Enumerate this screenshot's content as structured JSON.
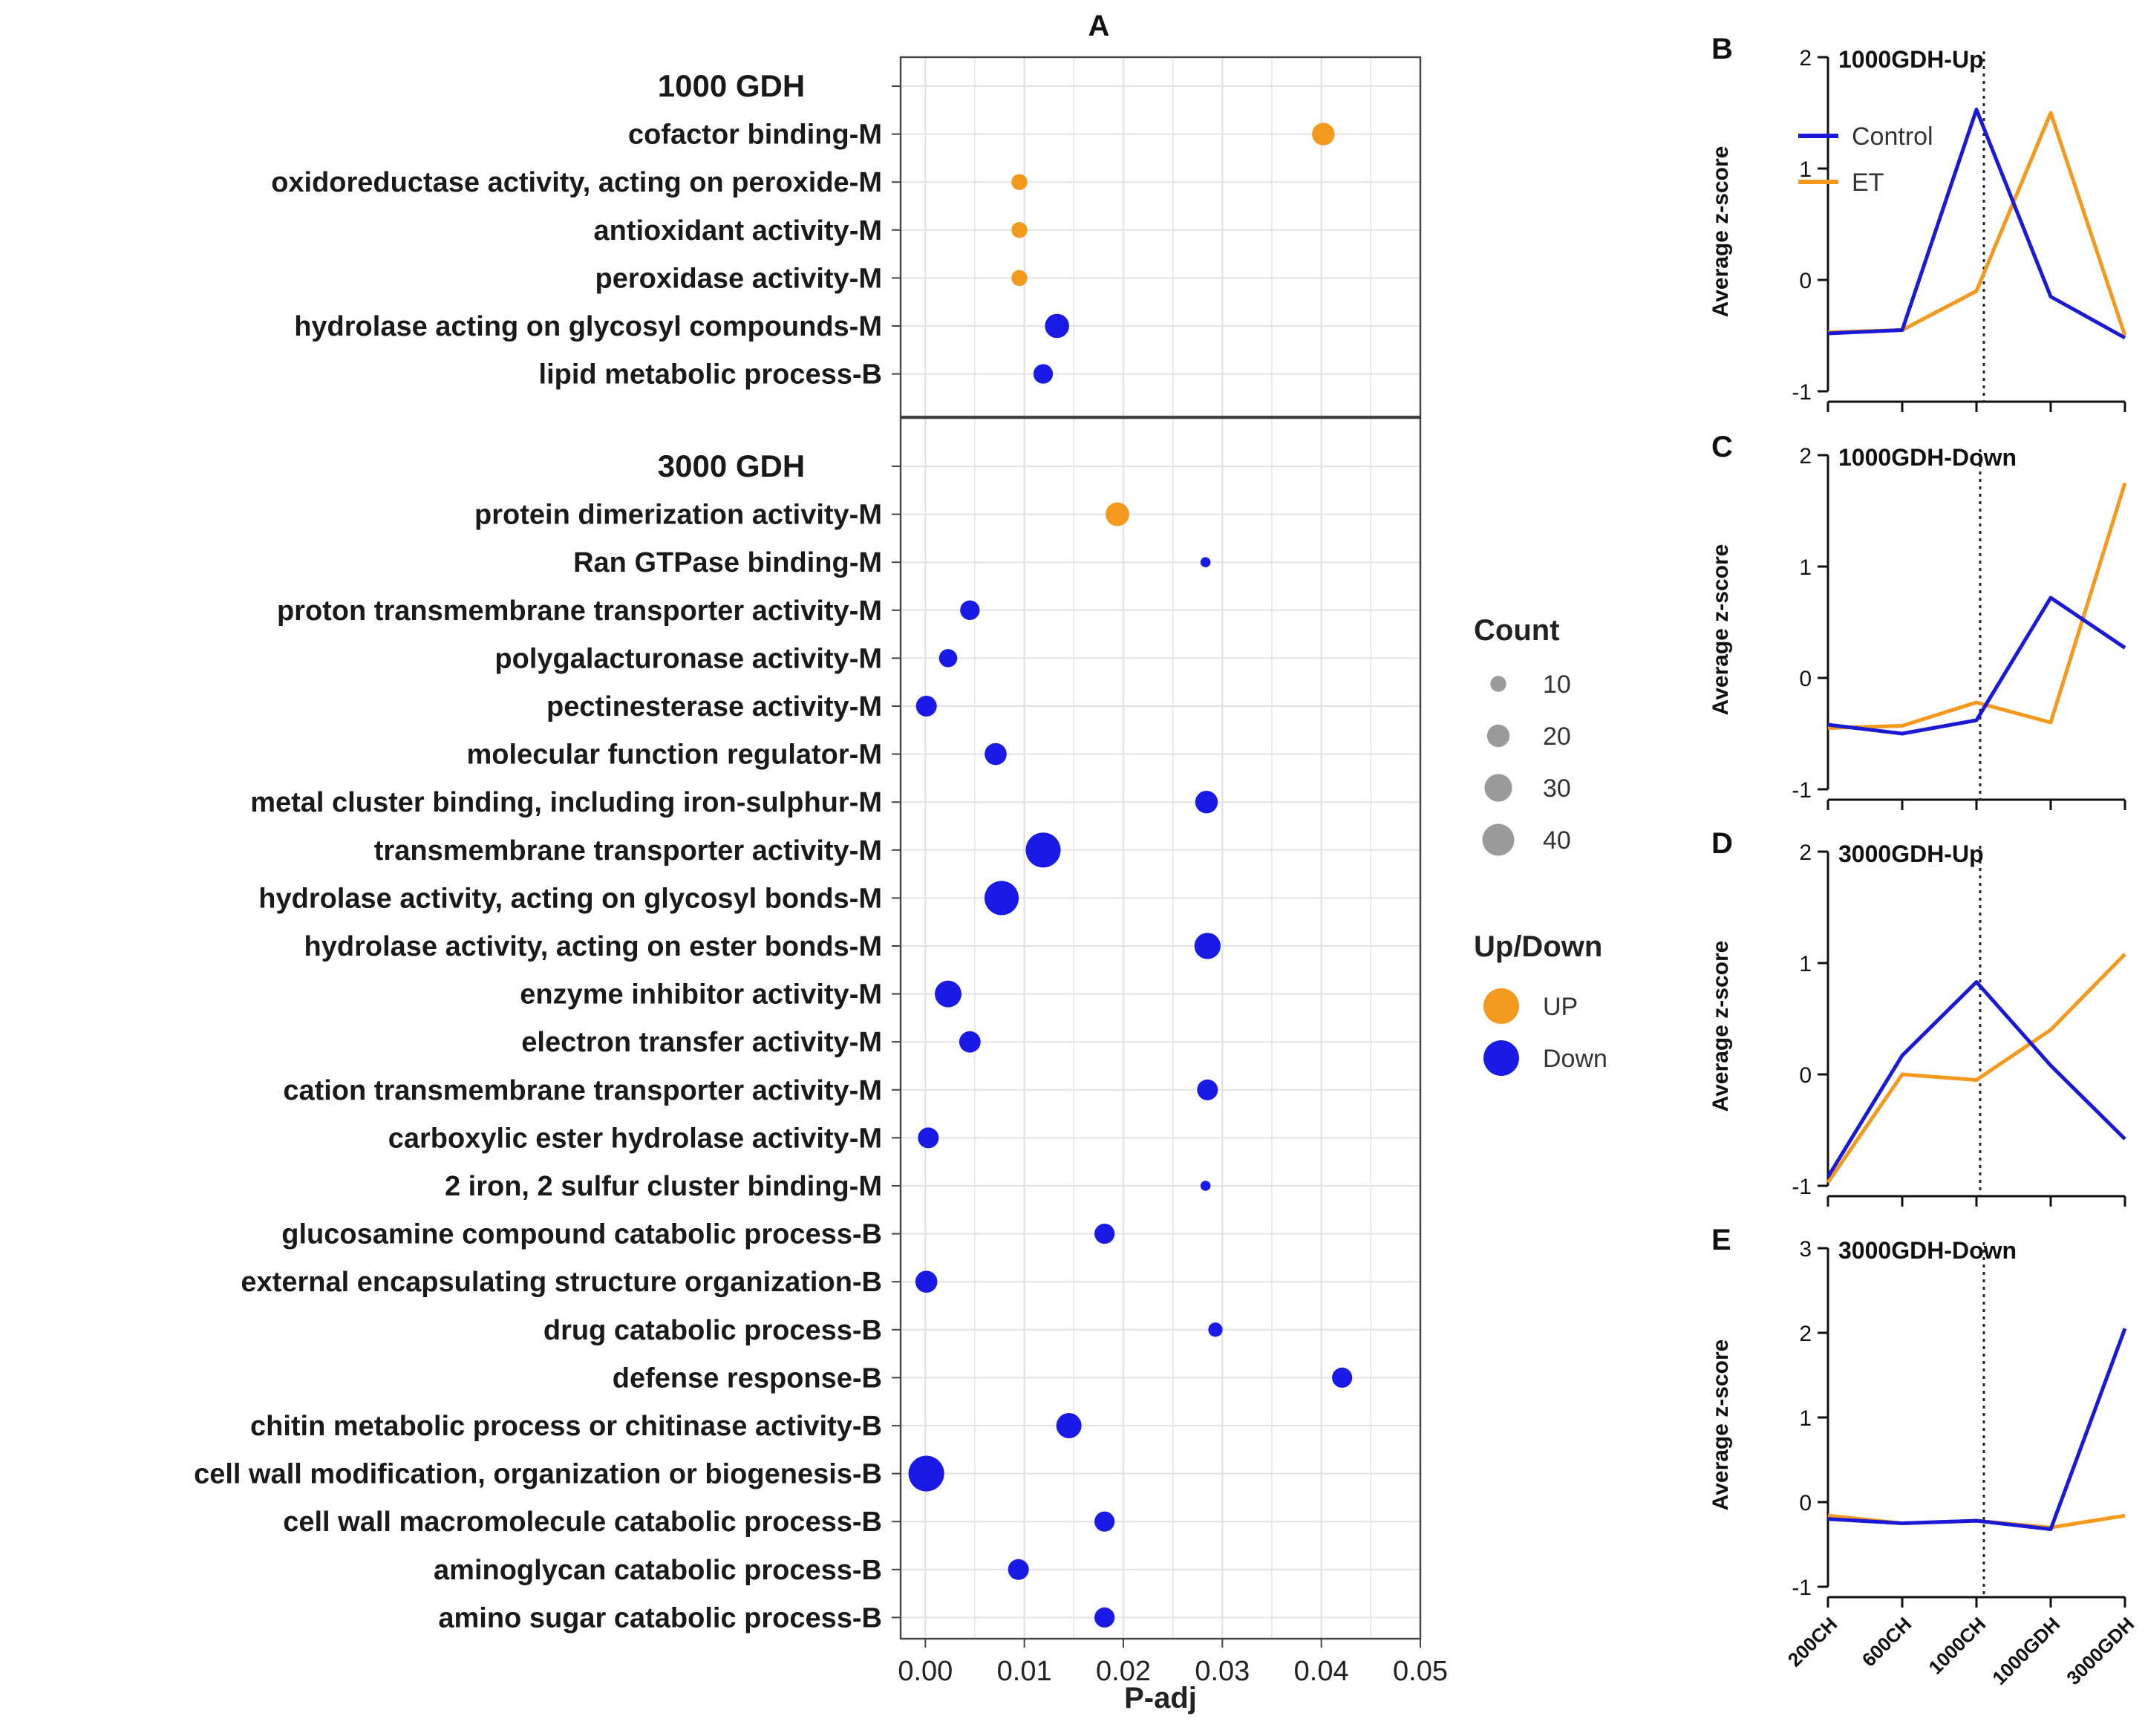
{
  "chart_data": [
    {
      "panel": "A",
      "type": "scatter",
      "title": "A",
      "xlabel": "P-adj",
      "xlim": [
        -0.0025,
        0.05
      ],
      "xticks": [
        "0.00",
        "0.01",
        "0.02",
        "0.03",
        "0.04",
        "0.05"
      ],
      "colors": {
        "UP": "#F39A1E",
        "Down": "#1A1AE6"
      },
      "groups": [
        {
          "label": "1000 GDH",
          "terms": [
            {
              "term": "cofactor binding-M",
              "padj": 0.0402,
              "count": 20,
              "dir": "UP"
            },
            {
              "term": "oxidoreductase activity, acting on peroxide-M",
              "padj": 0.0095,
              "count": 10,
              "dir": "UP"
            },
            {
              "term": "antioxidant activity-M",
              "padj": 0.0095,
              "count": 10,
              "dir": "UP"
            },
            {
              "term": "peroxidase activity-M",
              "padj": 0.0095,
              "count": 10,
              "dir": "UP"
            },
            {
              "term": "hydrolase acting on glycosyl compounds-M",
              "padj": 0.0133,
              "count": 23,
              "dir": "Down"
            },
            {
              "term": "lipid metabolic process-B",
              "padj": 0.0119,
              "count": 15,
              "dir": "Down"
            }
          ]
        },
        {
          "label": "3000 GDH",
          "terms": [
            {
              "term": "protein dimerization activity-M",
              "padj": 0.0194,
              "count": 22,
              "dir": "UP"
            },
            {
              "term": "Ran GTPase binding-M",
              "padj": 0.0283,
              "count": 4,
              "dir": "Down"
            },
            {
              "term": "proton transmembrane transporter activity-M",
              "padj": 0.0045,
              "count": 15,
              "dir": "Down"
            },
            {
              "term": "polygalacturonase activity-M",
              "padj": 0.0023,
              "count": 13,
              "dir": "Down"
            },
            {
              "term": "pectinesterase activity-M",
              "padj": 0.0001,
              "count": 17,
              "dir": "Down"
            },
            {
              "term": "molecular function regulator-M",
              "padj": 0.0071,
              "count": 19,
              "dir": "Down"
            },
            {
              "term": "metal cluster binding, including iron-sulphur-M",
              "padj": 0.0284,
              "count": 20,
              "dir": "Down"
            },
            {
              "term": "transmembrane transporter activity-M",
              "padj": 0.0119,
              "count": 48,
              "dir": "Down"
            },
            {
              "term": "hydrolase activity, acting on glycosyl bonds-M",
              "padj": 0.0077,
              "count": 46,
              "dir": "Down"
            },
            {
              "term": "hydrolase activity, acting on ester bonds-M",
              "padj": 0.0285,
              "count": 27,
              "dir": "Down"
            },
            {
              "term": "enzyme inhibitor activity-M",
              "padj": 0.0023,
              "count": 28,
              "dir": "Down"
            },
            {
              "term": "electron transfer activity-M",
              "padj": 0.0045,
              "count": 18,
              "dir": "Down"
            },
            {
              "term": "cation transmembrane transporter activity-M",
              "padj": 0.0285,
              "count": 17,
              "dir": "Down"
            },
            {
              "term": "carboxylic ester hydrolase activity-M",
              "padj": 0.0003,
              "count": 17,
              "dir": "Down"
            },
            {
              "term": "2 iron, 2 sulfur cluster binding-M",
              "padj": 0.0283,
              "count": 4,
              "dir": "Down"
            },
            {
              "term": "glucosamine compound catabolic process-B",
              "padj": 0.0181,
              "count": 16,
              "dir": "Down"
            },
            {
              "term": "external encapsulating structure organization-B",
              "padj": 0.0001,
              "count": 19,
              "dir": "Down"
            },
            {
              "term": "drug catabolic process-B",
              "padj": 0.0293,
              "count": 8,
              "dir": "Down"
            },
            {
              "term": "defense response-B",
              "padj": 0.0421,
              "count": 16,
              "dir": "Down"
            },
            {
              "term": "chitin metabolic process or chitinase activity-B",
              "padj": 0.0145,
              "count": 25,
              "dir": "Down"
            },
            {
              "term": "cell wall modification, organization or biogenesis-B",
              "padj": 0.0001,
              "count": 50,
              "dir": "Down"
            },
            {
              "term": "cell wall macromolecule catabolic process-B",
              "padj": 0.0181,
              "count": 16,
              "dir": "Down"
            },
            {
              "term": "aminoglycan catabolic process-B",
              "padj": 0.0094,
              "count": 17,
              "dir": "Down"
            },
            {
              "term": "amino sugar catabolic process-B",
              "padj": 0.0181,
              "count": 16,
              "dir": "Down"
            }
          ]
        }
      ],
      "legend": {
        "count_title": "Count",
        "count_values": [
          10,
          20,
          30,
          40
        ],
        "dir_title": "Up/Down",
        "dir_entries": [
          "UP",
          "Down"
        ]
      }
    },
    {
      "panel": "B",
      "type": "line",
      "title": "1000GDH-Up",
      "ylabel": "Average z-score",
      "ylim": [
        -1,
        2
      ],
      "yticks": [
        -1,
        0,
        1,
        2
      ],
      "categories": [
        "200CH",
        "600CH",
        "1000CH",
        "1000GDH",
        "3000GDH"
      ],
      "divider_x": 2.1,
      "series": [
        {
          "name": "Control",
          "color": "#1A1AD6",
          "values": [
            -0.48,
            -0.45,
            1.53,
            -0.15,
            -0.52
          ]
        },
        {
          "name": "ET",
          "color": "#F39A1E",
          "values": [
            -0.47,
            -0.45,
            -0.1,
            1.5,
            -0.5
          ]
        }
      ],
      "legend_position": "top-left"
    },
    {
      "panel": "C",
      "type": "line",
      "title": "1000GDH-Down",
      "ylabel": "Average z-score",
      "ylim": [
        -1,
        2
      ],
      "yticks": [
        -1,
        0,
        1,
        2
      ],
      "categories": [
        "200CH",
        "600CH",
        "1000CH",
        "1000GDH",
        "3000GDH"
      ],
      "divider_x": 2.05,
      "series": [
        {
          "name": "Control",
          "color": "#1A1AD6",
          "values": [
            -0.42,
            -0.5,
            -0.38,
            0.72,
            0.27
          ]
        },
        {
          "name": "ET",
          "color": "#F39A1E",
          "values": [
            -0.45,
            -0.43,
            -0.22,
            -0.4,
            1.75
          ]
        }
      ]
    },
    {
      "panel": "D",
      "type": "line",
      "title": "3000GDH-Up",
      "ylabel": "Average z-score",
      "ylim": [
        -1,
        2
      ],
      "yticks": [
        -1,
        0,
        1,
        2
      ],
      "categories": [
        "200CH",
        "600CH",
        "1000CH",
        "1000GDH",
        "3000GDH"
      ],
      "divider_x": 2.05,
      "series": [
        {
          "name": "Control",
          "color": "#1A1AD6",
          "values": [
            -0.92,
            0.17,
            0.83,
            0.08,
            -0.58
          ]
        },
        {
          "name": "ET",
          "color": "#F39A1E",
          "values": [
            -0.97,
            0.0,
            -0.05,
            0.4,
            1.08
          ]
        }
      ]
    },
    {
      "panel": "E",
      "type": "line",
      "title": "3000GDH-Down",
      "ylabel": "Average z-score",
      "ylim": [
        -1,
        3
      ],
      "yticks": [
        -1,
        0,
        1,
        2,
        3
      ],
      "categories": [
        "200CH",
        "600CH",
        "1000CH",
        "1000GDH",
        "3000GDH"
      ],
      "divider_x": 2.1,
      "series": [
        {
          "name": "Control",
          "color": "#1A1AD6",
          "values": [
            -0.2,
            -0.25,
            -0.22,
            -0.32,
            2.05
          ]
        },
        {
          "name": "ET",
          "color": "#F39A1E",
          "values": [
            -0.16,
            -0.25,
            -0.22,
            -0.3,
            -0.16
          ]
        }
      ]
    }
  ]
}
